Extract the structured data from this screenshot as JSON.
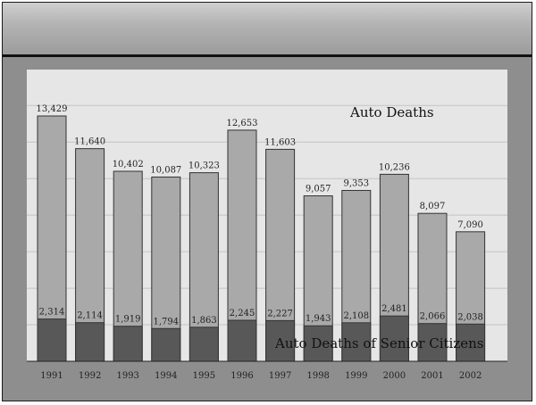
{
  "chart_data": {
    "type": "bar",
    "categories": [
      "1991",
      "1992",
      "1993",
      "1994",
      "1995",
      "1996",
      "1997",
      "1998",
      "1999",
      "2000",
      "2001",
      "2002"
    ],
    "series": [
      {
        "name": "Auto Deaths",
        "values": [
          13429,
          11640,
          10402,
          10087,
          10323,
          12653,
          11603,
          9057,
          9353,
          10236,
          8097,
          7090
        ],
        "labels": [
          "13,429",
          "11,640",
          "10,402",
          "10,087",
          "10,323",
          "12,653",
          "11,603",
          "9,057",
          "9,353",
          "10,236",
          "8,097",
          "7,090"
        ]
      },
      {
        "name": "Auto Deaths of Senior Citizens",
        "values": [
          2314,
          2114,
          1919,
          1794,
          1863,
          2245,
          2227,
          1943,
          2108,
          2481,
          2066,
          2038
        ],
        "labels": [
          "2,314",
          "2,114",
          "1,919",
          "1,794",
          "1,863",
          "2,245",
          "2,227",
          "1,943",
          "2,108",
          "2,481",
          "2,066",
          "2,038"
        ]
      }
    ],
    "annotations": [
      "Auto Deaths",
      "Auto Deaths of Senior Citizens"
    ],
    "title": "",
    "xlabel": "",
    "ylabel": "",
    "ylim": [
      0,
      15000
    ],
    "grid": true,
    "legend": "none",
    "colors": {
      "total_bar": "#a9a9a9",
      "senior_bar": "#585858",
      "plot_background": "#e6e6e6",
      "frame_background": "#8e8e8e"
    }
  }
}
